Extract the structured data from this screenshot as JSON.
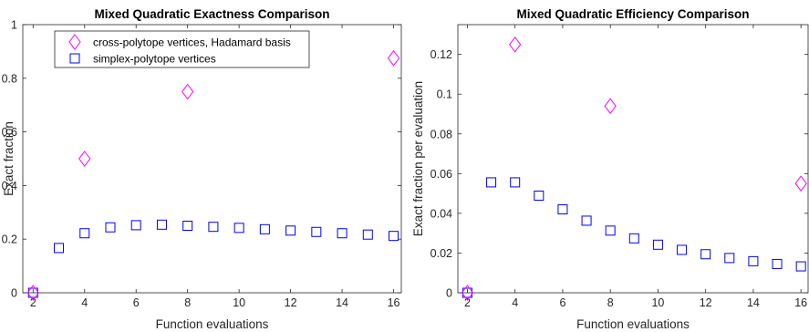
{
  "chart_data": [
    {
      "type": "scatter",
      "title": "Mixed Quadratic Exactness Comparison",
      "xlabel": "Function evaluations",
      "ylabel": "Exact fraction",
      "xlim": [
        1.6,
        16.3
      ],
      "ylim": [
        0,
        1
      ],
      "xticks": [
        2,
        4,
        6,
        8,
        10,
        12,
        14,
        16
      ],
      "yticks": [
        0,
        0.2,
        0.4,
        0.6,
        0.8,
        1
      ],
      "ytick_labels": [
        "0",
        "0.2",
        "0.4",
        "0.6",
        "0.8",
        "1"
      ],
      "grid": false,
      "legend": {
        "placement": "top-left",
        "entries": [
          {
            "label": "cross-polytope vertices, Hadamard basis",
            "marker": "diamond",
            "color": "#ff00ff"
          },
          {
            "label": "simplex-polytope vertices",
            "marker": "square",
            "color": "#0000ff"
          }
        ]
      },
      "series": [
        {
          "name": "cross-polytope vertices, Hadamard basis",
          "marker": "diamond",
          "color": "#ff00ff",
          "x": [
            2,
            4,
            8,
            16
          ],
          "y": [
            0,
            0.5,
            0.75,
            0.875
          ]
        },
        {
          "name": "simplex-polytope vertices",
          "marker": "square",
          "color": "#0000ff",
          "x": [
            2,
            3,
            4,
            5,
            6,
            7,
            8,
            9,
            10,
            11,
            12,
            13,
            14,
            15,
            16
          ],
          "y": [
            0,
            0.167,
            0.222,
            0.244,
            0.252,
            0.254,
            0.25,
            0.246,
            0.242,
            0.237,
            0.232,
            0.227,
            0.222,
            0.217,
            0.212
          ]
        }
      ]
    },
    {
      "type": "scatter",
      "title": "Mixed Quadratic Efficiency Comparison",
      "xlabel": "Function evaluations",
      "ylabel": "Exact fraction per evaluation",
      "xlim": [
        1.6,
        16.3
      ],
      "ylim": [
        0,
        0.135
      ],
      "xticks": [
        2,
        4,
        6,
        8,
        10,
        12,
        14,
        16
      ],
      "yticks": [
        0,
        0.02,
        0.04,
        0.06,
        0.08,
        0.1,
        0.12
      ],
      "ytick_labels": [
        "0",
        "0.02",
        "0.04",
        "0.06",
        "0.08",
        "0.1",
        "0.12"
      ],
      "grid": false,
      "series": [
        {
          "name": "cross-polytope vertices, Hadamard basis",
          "marker": "diamond",
          "color": "#ff00ff",
          "x": [
            2,
            4,
            8,
            16
          ],
          "y": [
            0,
            0.125,
            0.094,
            0.055
          ]
        },
        {
          "name": "simplex-polytope vertices",
          "marker": "square",
          "color": "#0000ff",
          "x": [
            2,
            3,
            4,
            5,
            6,
            7,
            8,
            9,
            10,
            11,
            12,
            13,
            14,
            15,
            16
          ],
          "y": [
            0,
            0.0556,
            0.0556,
            0.0489,
            0.042,
            0.0363,
            0.0313,
            0.0274,
            0.0242,
            0.0216,
            0.0194,
            0.0175,
            0.0159,
            0.0145,
            0.0133
          ]
        }
      ]
    }
  ]
}
